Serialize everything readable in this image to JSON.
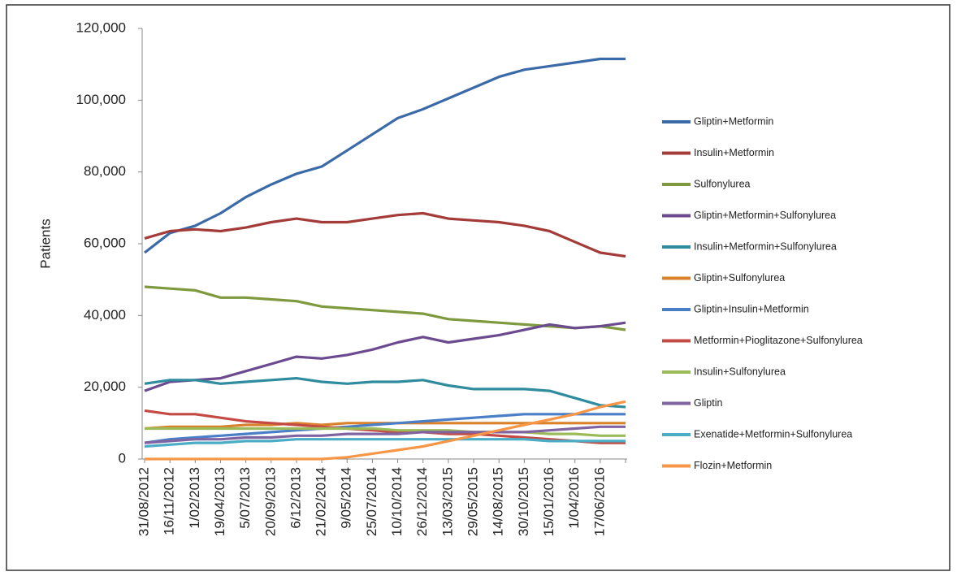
{
  "chart_data": {
    "type": "line",
    "y_label": "Patients",
    "categories": [
      "31/08/2012",
      "16/11/2012",
      "1/02/2013",
      "19/04/2013",
      "5/07/2013",
      "20/09/2013",
      "6/12/2013",
      "21/02/2014",
      "9/05/2014",
      "25/07/2014",
      "10/10/2014",
      "26/12/2014",
      "13/03/2015",
      "29/05/2015",
      "14/08/2015",
      "30/10/2015",
      "15/01/2016",
      "1/04/2016",
      "17/06/2016",
      null
    ],
    "ylim": [
      0,
      120000
    ],
    "yticks": [
      0,
      {
        "value": 20000,
        "label": "20,000"
      },
      {
        "value": 40000,
        "label": "40,000"
      },
      {
        "value": 60000,
        "label": "60,000"
      },
      {
        "value": 80000,
        "label": "80,000"
      },
      {
        "value": 100000,
        "label": "100,000"
      },
      {
        "value": 120000,
        "label": "120,000"
      }
    ],
    "grid": false,
    "legend": "right",
    "series": [
      {
        "name": "Gliptin+Metformin",
        "color": "#3b6aa8",
        "values": [
          57500,
          63000,
          65000,
          68500,
          73000,
          76500,
          79500,
          81500,
          86000,
          90500,
          95000,
          97500,
          100500,
          103500,
          106500,
          108500,
          109500,
          110500,
          111500,
          111500
        ]
      },
      {
        "name": "Insulin+Metformin",
        "color": "#a33b38",
        "values": [
          61500,
          63500,
          64000,
          63500,
          64500,
          66000,
          67000,
          66000,
          66000,
          67000,
          68000,
          68500,
          67000,
          66500,
          66000,
          65000,
          63500,
          60500,
          57500,
          56500
        ]
      },
      {
        "name": "Sulfonylurea",
        "color": "#7f9a3e",
        "values": [
          48000,
          47500,
          47000,
          45000,
          45000,
          44500,
          44000,
          42500,
          42000,
          41500,
          41000,
          40500,
          39000,
          38500,
          38000,
          37500,
          37000,
          36500,
          37000,
          36000
        ]
      },
      {
        "name": "Gliptin+Metformin+Sulfonylurea",
        "color": "#6c4a8f",
        "values": [
          19000,
          21500,
          22000,
          22500,
          24500,
          26500,
          28500,
          28000,
          29000,
          30500,
          32500,
          34000,
          32500,
          33500,
          34500,
          36000,
          37500,
          36500,
          37000,
          38000
        ]
      },
      {
        "name": "Insulin+Metformin+Sulfonylurea",
        "color": "#2f8c9f",
        "values": [
          21000,
          22000,
          22000,
          21000,
          21500,
          22000,
          22500,
          21500,
          21000,
          21500,
          21500,
          22000,
          20500,
          19500,
          19500,
          19500,
          19000,
          17000,
          15000,
          14500
        ]
      },
      {
        "name": "Gliptin+Sulfonylurea",
        "color": "#d9822b",
        "values": [
          8500,
          9000,
          9000,
          9000,
          9500,
          9500,
          10000,
          9500,
          10000,
          10000,
          10000,
          10000,
          10000,
          10000,
          10000,
          10000,
          10000,
          10000,
          10000,
          10000
        ]
      },
      {
        "name": "Gliptin+Insulin+Metformin",
        "color": "#4a7ec6",
        "values": [
          4500,
          5500,
          6000,
          6500,
          7000,
          7500,
          8000,
          8500,
          9000,
          9500,
          10000,
          10500,
          11000,
          11500,
          12000,
          12500,
          12500,
          12500,
          12500,
          12500
        ]
      },
      {
        "name": "Metformin+Pioglitazone+Sulfonylurea",
        "color": "#c44a44",
        "values": [
          13500,
          12500,
          12500,
          11500,
          10500,
          10000,
          9500,
          9000,
          8500,
          8000,
          7500,
          7500,
          7000,
          7000,
          6500,
          6000,
          5500,
          5000,
          4500,
          4500
        ]
      },
      {
        "name": "Insulin+Sulfonylurea",
        "color": "#9bbb59",
        "values": [
          8500,
          8500,
          8500,
          8500,
          8500,
          8500,
          8500,
          8500,
          8500,
          8500,
          8000,
          8000,
          8000,
          7500,
          7500,
          7500,
          7000,
          7000,
          6500,
          6500
        ]
      },
      {
        "name": "Gliptin",
        "color": "#8064a2",
        "values": [
          4500,
          5000,
          5500,
          5500,
          6000,
          6000,
          6500,
          6500,
          7000,
          7000,
          7000,
          7500,
          7500,
          7500,
          7500,
          7500,
          8000,
          8500,
          9000,
          9000
        ]
      },
      {
        "name": "Exenatide+Metformin+Sulfonylurea",
        "color": "#4bacc6",
        "values": [
          3500,
          4000,
          4500,
          4500,
          5000,
          5000,
          5500,
          5500,
          5500,
          5500,
          5500,
          5500,
          5500,
          5500,
          5500,
          5500,
          5000,
          5000,
          5000,
          5000
        ]
      },
      {
        "name": "Flozin+Metformin",
        "color": "#f79646",
        "values": [
          0,
          0,
          0,
          0,
          0,
          0,
          0,
          0,
          500,
          1500,
          2500,
          3500,
          5000,
          6500,
          8000,
          9500,
          11000,
          12500,
          14500,
          16000
        ]
      }
    ]
  }
}
